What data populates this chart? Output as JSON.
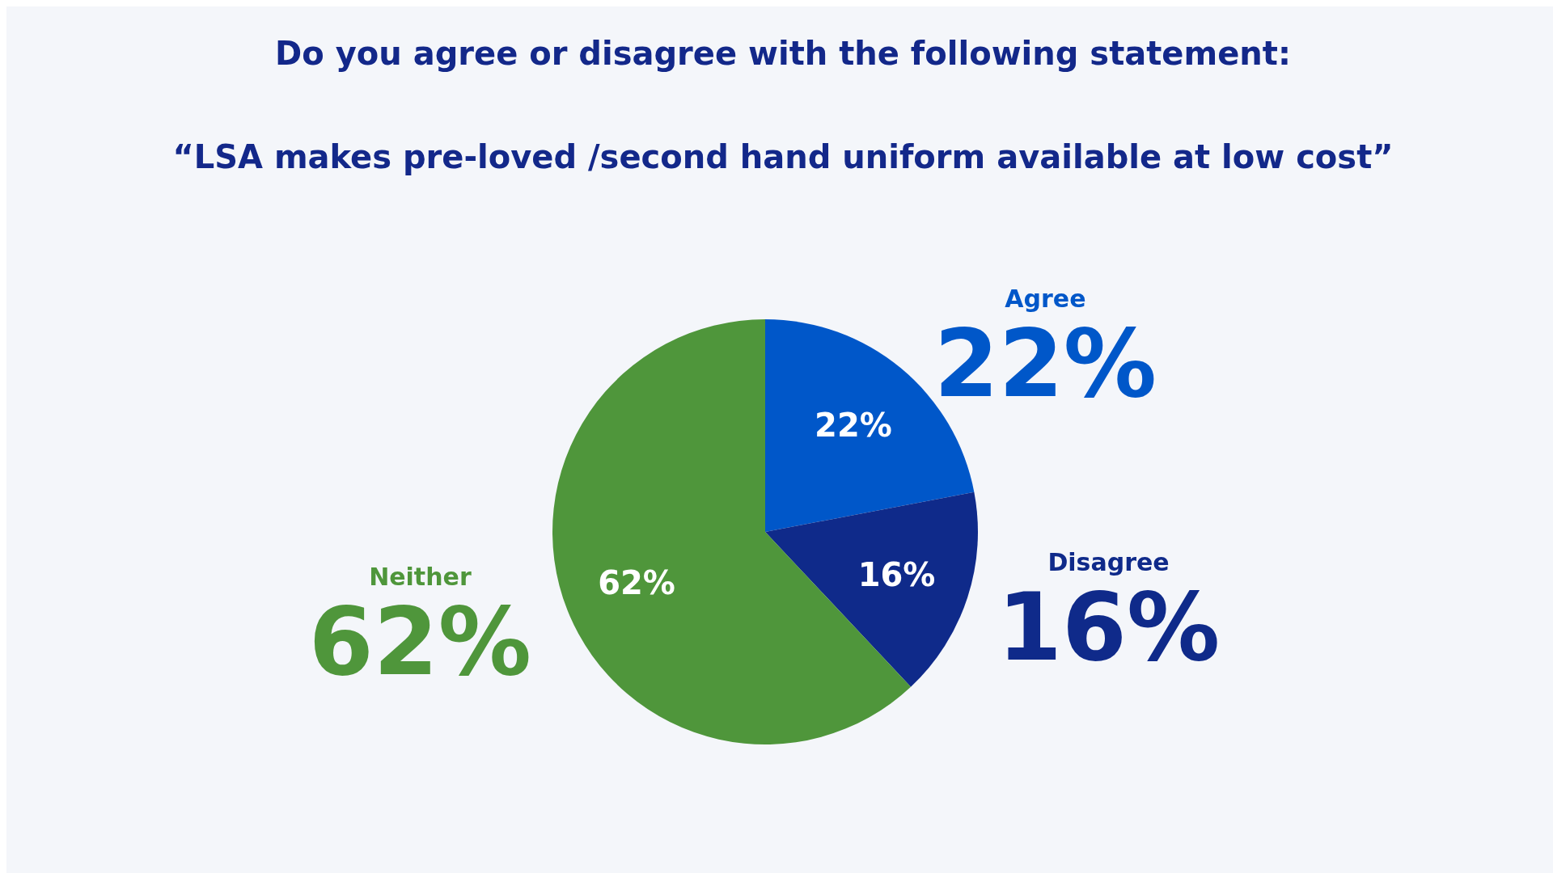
{
  "chart_data": {
    "type": "pie",
    "title": "Do you agree or disagree with the following statement:",
    "subtitle": "“LSA makes pre-loved /second hand uniform available at low cost”",
    "categories": [
      "Agree",
      "Disagree",
      "Neither"
    ],
    "values": [
      22,
      16,
      62
    ],
    "colors": [
      "#0057c9",
      "#0f2a8a",
      "#4f963b"
    ],
    "value_labels": [
      "22%",
      "16%",
      "62%"
    ]
  }
}
